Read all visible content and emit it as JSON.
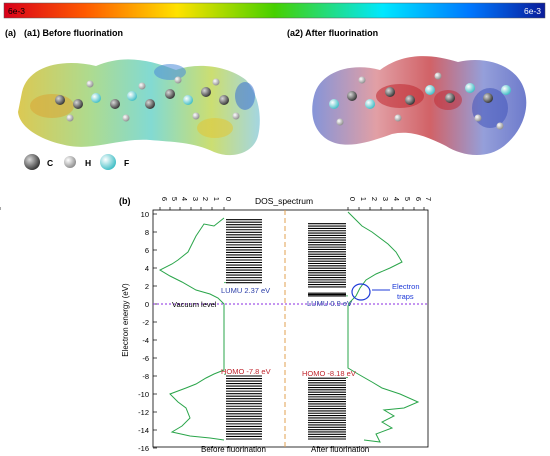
{
  "colorbar": {
    "min_label": "6e-3",
    "max_label": "6e-3"
  },
  "panel_a": {
    "label": "(a)",
    "left_title": "(a1) Before fluorination",
    "right_title": "(a2) After fluorination",
    "legend": [
      {
        "name": "C",
        "color": "#707070"
      },
      {
        "name": "H",
        "color": "#d8d8d8"
      },
      {
        "name": "F",
        "color": "#8fe3e6"
      }
    ]
  },
  "panel_b": {
    "label": "(b)",
    "top_title": "DOS_spectrum",
    "top_ticks": [
      "6",
      "5",
      "4",
      "3",
      "2",
      "1",
      "0",
      "0",
      "1",
      "2",
      "3",
      "4",
      "5",
      "6",
      "7",
      "8"
    ],
    "y_axis_label": "Electron energy (eV)",
    "y_ticks": [
      10,
      8,
      6,
      4,
      2,
      0,
      -2,
      -4,
      -6,
      -8,
      -10,
      -12,
      -14,
      -16
    ],
    "vacuum_label": "Vacuum level",
    "before": {
      "lumu_label": "LUMU 2.37 eV",
      "homo_label": "HOMO -7.8 eV",
      "caption": "Before fluorination",
      "lumu": 2.37,
      "homo": -7.8
    },
    "after": {
      "lumu_label": "LUMU 0.9 eV",
      "homo_label": "HOMO -8.18 eV",
      "caption": "After fluorination",
      "lumu": 0.9,
      "homo": -8.18
    },
    "traps_label_1": "Electron",
    "traps_label_2": "traps"
  }
}
